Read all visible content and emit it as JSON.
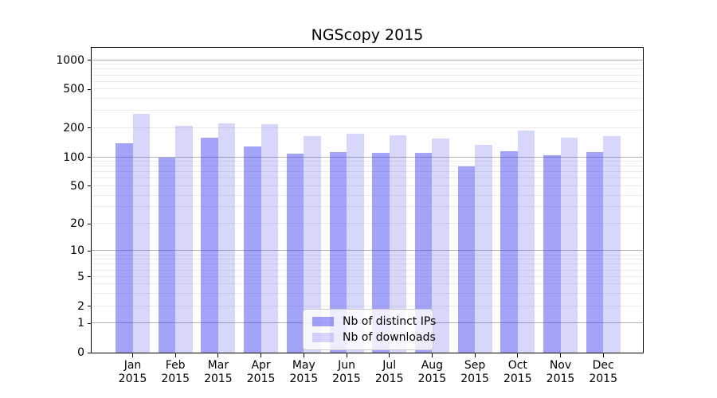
{
  "chart_data": {
    "type": "bar",
    "title": "NGScopy 2015",
    "categories": [
      "Jan",
      "Feb",
      "Mar",
      "Apr",
      "May",
      "Jun",
      "Jul",
      "Aug",
      "Sep",
      "Oct",
      "Nov",
      "Dec"
    ],
    "x_tick_year": "2015",
    "series": [
      {
        "name": "Nb of distinct IPs",
        "color": "rgba(68,68,238,0.49)",
        "values": [
          140,
          100,
          160,
          130,
          110,
          113,
          112,
          111,
          80,
          115,
          105,
          113
        ]
      },
      {
        "name": "Nb of downloads",
        "color": "rgba(68,68,238,0.21)",
        "values": [
          280,
          210,
          225,
          220,
          165,
          175,
          170,
          155,
          135,
          190,
          160,
          165
        ]
      }
    ],
    "y_scale": "log10(1+v)",
    "y_axis_top_value": 1340,
    "y_ticks": [
      1000,
      500,
      200,
      100,
      50,
      20,
      10,
      5,
      2,
      1,
      0
    ],
    "gridlines_light": [
      2,
      3,
      4,
      5,
      6,
      7,
      8,
      9,
      20,
      30,
      40,
      50,
      60,
      70,
      80,
      90,
      200,
      300,
      400,
      500,
      600,
      700,
      800,
      900
    ],
    "gridlines_dark": [
      1,
      10,
      100,
      1000
    ],
    "legend_position": "lower center",
    "colors": {
      "bar_base": "#4444ee",
      "grid_minor": "#ebebeb",
      "grid_major": "#b1b1b1",
      "axis": "#000000",
      "legend_border": "#cccccc"
    }
  }
}
